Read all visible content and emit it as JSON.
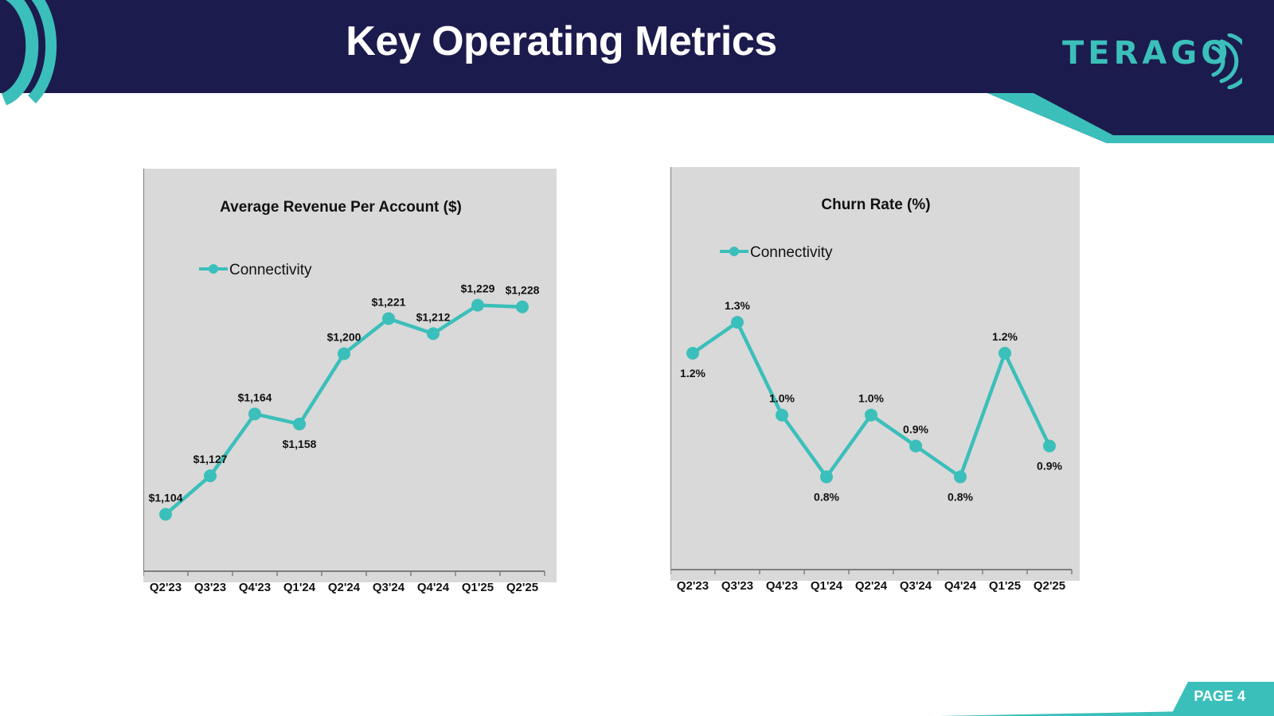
{
  "header": {
    "title": "Key Operating Metrics",
    "logo_text": "TERAGO",
    "colors": {
      "navy": "#1c1b4d",
      "teal": "#3bbfba"
    }
  },
  "footer": {
    "page_label": "PAGE 4"
  },
  "chart_data": [
    {
      "type": "line",
      "title": "Average Revenue Per Account ($)",
      "xlabel": "",
      "ylabel": "",
      "categories": [
        "Q2'23",
        "Q3'23",
        "Q4'23",
        "Q1'24",
        "Q2'24",
        "Q3'24",
        "Q4'24",
        "Q1'25",
        "Q2'25"
      ],
      "series": [
        {
          "name": "Connectivity",
          "color": "#3bbfba",
          "values": [
            1104,
            1127,
            1164,
            1158,
            1200,
            1221,
            1212,
            1229,
            1228
          ],
          "labels": [
            "$1,104",
            "$1,127",
            "$1,164",
            "$1,158",
            "$1,200",
            "$1,221",
            "$1,212",
            "$1,229",
            "$1,228"
          ]
        }
      ],
      "ylim": [
        1070,
        1245
      ],
      "grid": false,
      "legend": "top-left",
      "background": "#d9d9d9"
    },
    {
      "type": "line",
      "title": "Churn Rate (%)",
      "xlabel": "",
      "ylabel": "",
      "categories": [
        "Q2'23",
        "Q3'23",
        "Q4'23",
        "Q1'24",
        "Q2'24",
        "Q3'24",
        "Q4'24",
        "Q1'25",
        "Q2'25"
      ],
      "series": [
        {
          "name": "Connectivity",
          "color": "#3bbfba",
          "values": [
            1.2,
            1.3,
            1.0,
            0.8,
            1.0,
            0.9,
            0.8,
            1.2,
            0.9
          ],
          "labels": [
            "1.2%",
            "1.3%",
            "1.0%",
            "0.8%",
            "1.0%",
            "0.9%",
            "0.8%",
            "1.2%",
            "0.9%"
          ]
        }
      ],
      "ylim": [
        0.5,
        1.55
      ],
      "grid": false,
      "legend": "top-left",
      "background": "#d9d9d9"
    }
  ]
}
